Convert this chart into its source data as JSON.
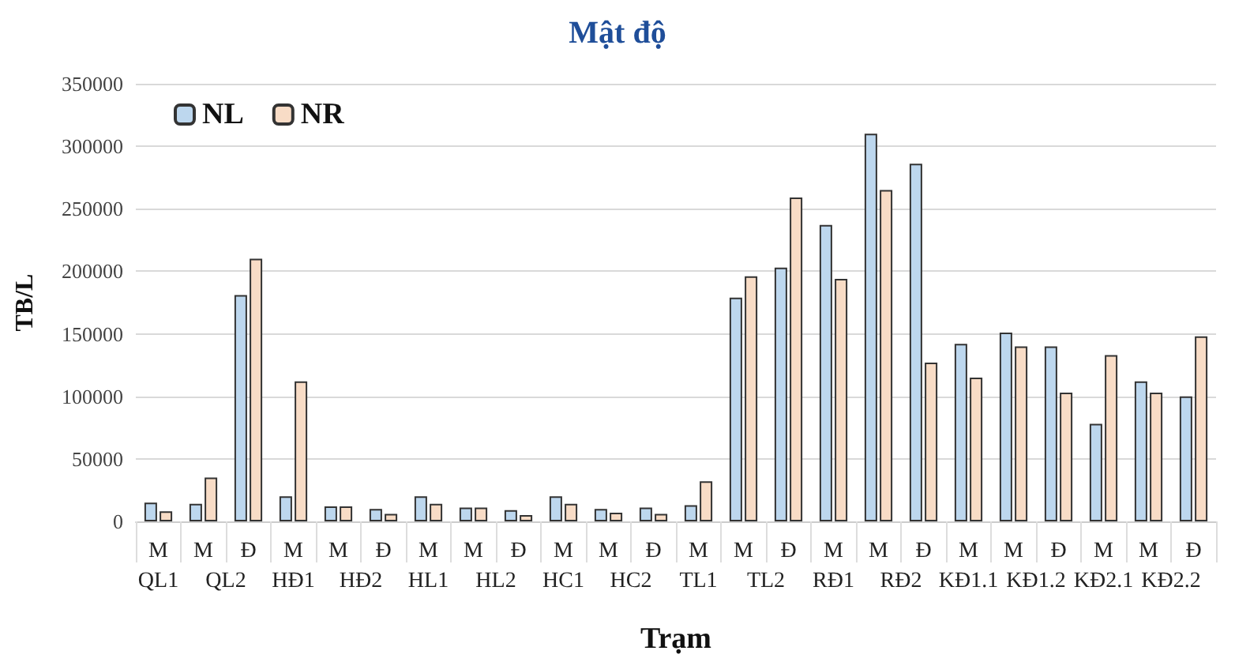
{
  "chart_data": {
    "type": "bar",
    "title": "Mật độ",
    "xlabel": "Trạm",
    "ylabel": "TB/L",
    "categories": [
      "M",
      "M",
      "Đ",
      "M",
      "M",
      "Đ",
      "M",
      "M",
      "Đ",
      "M",
      "M",
      "Đ",
      "M",
      "M",
      "Đ",
      "M",
      "M",
      "Đ",
      "M",
      "M",
      "Đ",
      "M",
      "M",
      "Đ"
    ],
    "annotations": [
      "QL1",
      "QL2",
      "HĐ1",
      "HĐ2",
      "HL1",
      "HL2",
      "HC1",
      "HC2",
      "TL1",
      "TL2",
      "RĐ1",
      "RĐ2",
      "KĐ1.1",
      "KĐ1.2",
      "KĐ2.1",
      "KĐ2.2"
    ],
    "series": [
      {
        "name": "NL",
        "color": "#bdd7ee",
        "values": [
          15000,
          14000,
          181000,
          20000,
          12000,
          10000,
          20000,
          11000,
          9000,
          20000,
          10000,
          11000,
          13000,
          179000,
          203000,
          237000,
          310000,
          286000,
          142000,
          151000,
          140000,
          78000,
          112000,
          100000
        ]
      },
      {
        "name": "NR",
        "color": "#f8dcc6",
        "values": [
          8000,
          35000,
          210000,
          112000,
          12000,
          6000,
          14000,
          11000,
          5000,
          14000,
          7000,
          6000,
          32000,
          196000,
          259000,
          194000,
          265000,
          127000,
          115000,
          140000,
          103000,
          133000,
          103000,
          148000
        ]
      }
    ],
    "ylim": [
      0,
      350000
    ],
    "yticks": [
      0,
      50000,
      100000,
      150000,
      200000,
      250000,
      300000,
      350000
    ],
    "grid": "y",
    "legend": "top left"
  }
}
